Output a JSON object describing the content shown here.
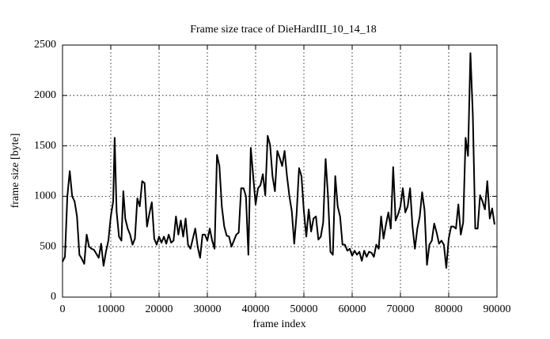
{
  "chart_data": {
    "type": "line",
    "title": "Frame size trace of DieHardIII_10_14_18",
    "x_label": "frame index",
    "y_label": "frame size [byte]",
    "xlim": [
      0,
      90000
    ],
    "ylim": [
      0,
      2500
    ],
    "xticks": [
      0,
      10000,
      20000,
      30000,
      40000,
      50000,
      60000,
      70000,
      80000,
      90000
    ],
    "yticks": [
      0,
      500,
      1000,
      1500,
      2000,
      2500
    ],
    "grid": true,
    "x": [
      0,
      500,
      1000,
      1500,
      2000,
      2500,
      3000,
      3500,
      4000,
      4500,
      5000,
      5500,
      6000,
      6500,
      7000,
      7500,
      8000,
      8500,
      9000,
      9500,
      10000,
      10500,
      10800,
      11200,
      11700,
      12200,
      12600,
      13000,
      13500,
      14000,
      14500,
      15000,
      15500,
      16000,
      16500,
      17000,
      17500,
      18000,
      18500,
      19000,
      19500,
      20000,
      20500,
      21000,
      21500,
      22000,
      22500,
      23000,
      23500,
      24000,
      24500,
      25000,
      25500,
      26000,
      26500,
      27000,
      27500,
      28000,
      28500,
      29000,
      29500,
      30000,
      30500,
      31000,
      31500,
      32000,
      32500,
      33000,
      33500,
      34000,
      34500,
      35000,
      35500,
      36000,
      36500,
      37000,
      37500,
      38000,
      38500,
      39000,
      39500,
      40000,
      40500,
      41000,
      41500,
      42000,
      42500,
      43000,
      43500,
      44000,
      44500,
      45000,
      45500,
      46000,
      46500,
      47000,
      47500,
      48000,
      48500,
      49000,
      49500,
      50000,
      50500,
      51000,
      51500,
      52000,
      52500,
      53000,
      53500,
      54000,
      54500,
      55000,
      55500,
      56000,
      56500,
      57000,
      57500,
      58000,
      58500,
      59000,
      59500,
      60000,
      60500,
      61000,
      61500,
      62000,
      62500,
      63000,
      63500,
      64000,
      64500,
      65000,
      65500,
      66000,
      66500,
      67000,
      67500,
      68000,
      68500,
      69000,
      69500,
      70000,
      70500,
      71000,
      71500,
      72000,
      72500,
      73000,
      73500,
      74000,
      74500,
      75000,
      75500,
      76000,
      76500,
      77000,
      77500,
      78000,
      78500,
      79000,
      79500,
      80000,
      80500,
      81000,
      81500,
      82000,
      82500,
      83000,
      83500,
      84000,
      84500,
      85000,
      85500,
      86000,
      86500,
      87000,
      87500,
      88000,
      88500,
      89000,
      89500
    ],
    "series": [
      {
        "name": "frame size",
        "color": "#000000",
        "values": [
          350,
          400,
          1000,
          1250,
          1000,
          950,
          800,
          420,
          380,
          330,
          620,
          500,
          480,
          470,
          430,
          390,
          530,
          310,
          450,
          560,
          800,
          950,
          1580,
          850,
          600,
          560,
          1050,
          780,
          680,
          620,
          520,
          580,
          980,
          900,
          1150,
          1130,
          700,
          830,
          940,
          580,
          520,
          600,
          540,
          600,
          530,
          620,
          540,
          560,
          800,
          620,
          760,
          600,
          780,
          520,
          480,
          580,
          680,
          500,
          390,
          620,
          620,
          560,
          680,
          560,
          480,
          1410,
          1300,
          900,
          700,
          610,
          600,
          500,
          560,
          620,
          640,
          1080,
          1080,
          1000,
          420,
          1480,
          1200,
          920,
          1080,
          1110,
          1220,
          1010,
          1600,
          1510,
          1200,
          1050,
          1450,
          1380,
          1300,
          1450,
          1200,
          1000,
          850,
          530,
          830,
          1280,
          1200,
          850,
          600,
          870,
          650,
          780,
          800,
          570,
          600,
          740,
          1370,
          1000,
          450,
          420,
          1200,
          900,
          800,
          520,
          520,
          460,
          480,
          410,
          460,
          420,
          450,
          360,
          460,
          400,
          450,
          440,
          400,
          520,
          480,
          800,
          580,
          720,
          840,
          680,
          1290,
          760,
          820,
          900,
          1080,
          840,
          900,
          1080,
          700,
          480,
          680,
          800,
          1040,
          860,
          320,
          520,
          560,
          730,
          640,
          530,
          560,
          520,
          290,
          580,
          700,
          700,
          680,
          920,
          620,
          740,
          1580,
          1400,
          2420,
          1800,
          680,
          680,
          1010,
          950,
          870,
          1150,
          780,
          880,
          720
        ]
      }
    ]
  }
}
